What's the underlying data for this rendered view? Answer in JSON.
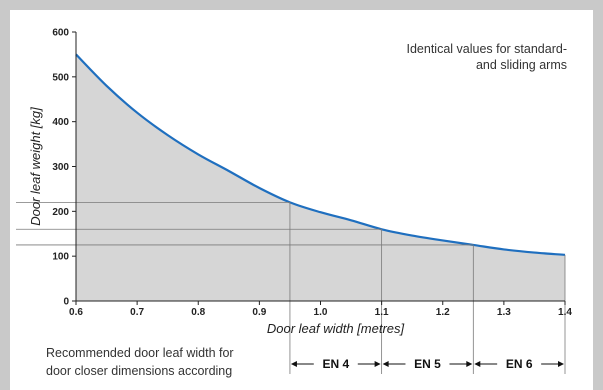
{
  "chart_data": {
    "type": "area",
    "title": "",
    "xlabel": "Door leaf width [metres]",
    "ylabel": "Door leaf weight [kg]",
    "xlim": [
      0.6,
      1.4
    ],
    "ylim": [
      0,
      600
    ],
    "x_ticks": [
      0.6,
      0.7,
      0.8,
      0.9,
      1.0,
      1.1,
      1.2,
      1.3,
      1.4
    ],
    "x_tick_labels": [
      "0.6",
      "0.7",
      "0.8",
      "0.9",
      "1.0",
      "1.1",
      "1.2",
      "1.3",
      "1.4"
    ],
    "y_ticks": [
      0,
      100,
      200,
      300,
      400,
      500,
      600
    ],
    "y_tick_labels": [
      "0",
      "100",
      "200",
      "300",
      "400",
      "500",
      "600"
    ],
    "grid": false,
    "curve_color": "#1f6fbf",
    "fill_color": "#d6d6d6",
    "series": [
      {
        "x": [
          0.6,
          0.65,
          0.7,
          0.75,
          0.8,
          0.85,
          0.9,
          0.95,
          1.0,
          1.05,
          1.1,
          1.15,
          1.2,
          1.25,
          1.3,
          1.35,
          1.4
        ],
        "values": [
          550,
          480,
          420,
          370,
          327,
          290,
          252,
          220,
          198,
          180,
          160,
          146,
          135,
          125,
          115,
          108,
          103
        ]
      }
    ],
    "reference_lines": [
      {
        "x": 0.95,
        "y": 220
      },
      {
        "x": 1.1,
        "y": 160
      },
      {
        "x": 1.25,
        "y": 125
      }
    ],
    "annotation": [
      "Identical values for standard-",
      "and sliding arms"
    ],
    "note": [
      "Recommended door leaf width for",
      "door closer dimensions according"
    ],
    "en_ranges": [
      {
        "label": "EN 4",
        "from": 0.95,
        "to": 1.1
      },
      {
        "label": "EN 5",
        "from": 1.1,
        "to": 1.25
      },
      {
        "label": "EN 6",
        "from": 1.25,
        "to": 1.4
      }
    ]
  }
}
